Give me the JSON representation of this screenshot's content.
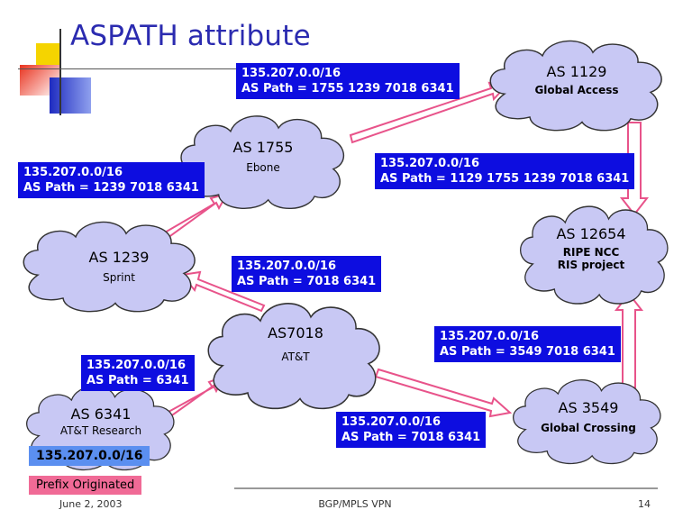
{
  "title": "ASPATH attribute",
  "colors": {
    "cloud_fill": "#c8c8f4",
    "label_box": "#0d0de0",
    "arrow_fill": "#ffffff",
    "arrow_stroke": "#e8538a",
    "title": "#2b2bb0"
  },
  "clouds": [
    {
      "id": "as1129",
      "as": "AS 1129",
      "org": "Global Access",
      "org_bold": true
    },
    {
      "id": "as1755",
      "as": "AS 1755",
      "org": "Ebone",
      "org_bold": false
    },
    {
      "id": "as1239",
      "as": "AS 1239",
      "org": "Sprint",
      "org_bold": false
    },
    {
      "id": "as12654",
      "as": "AS 12654",
      "org": "RIPE NCC",
      "org2": "RIS project",
      "org_bold": true
    },
    {
      "id": "as7018",
      "as": "AS7018",
      "org": "AT&T",
      "org_bold": false
    },
    {
      "id": "as6341",
      "as": "AS 6341",
      "org": "AT&T Research",
      "org_bold": false
    },
    {
      "id": "as3549",
      "as": "AS 3549",
      "org": "Global Crossing",
      "org_bold": true
    }
  ],
  "labels": [
    {
      "id": "l1",
      "prefix": "135.207.0.0/16",
      "path": "AS Path = 1755 1239 7018 6341"
    },
    {
      "id": "l2",
      "prefix": "135.207.0.0/16",
      "path": "AS Path = 1239 7018 6341"
    },
    {
      "id": "l3",
      "prefix": "135.207.0.0/16",
      "path": "AS Path = 1129 1755 1239 7018 6341"
    },
    {
      "id": "l4",
      "prefix": "135.207.0.0/16",
      "path": "AS Path = 7018 6341"
    },
    {
      "id": "l5",
      "prefix": "135.207.0.0/16",
      "path": "AS Path = 6341"
    },
    {
      "id": "l6",
      "prefix": "135.207.0.0/16",
      "path": "AS Path = 3549 7018 6341"
    },
    {
      "id": "l7",
      "prefix": "135.207.0.0/16",
      "path": "AS Path = 7018 6341"
    }
  ],
  "origin_prefix": "135.207.0.0/16",
  "origin_label": "Prefix Originated",
  "footer": {
    "date": "June 2, 2003",
    "center": "BGP/MPLS VPN",
    "page": "14"
  }
}
